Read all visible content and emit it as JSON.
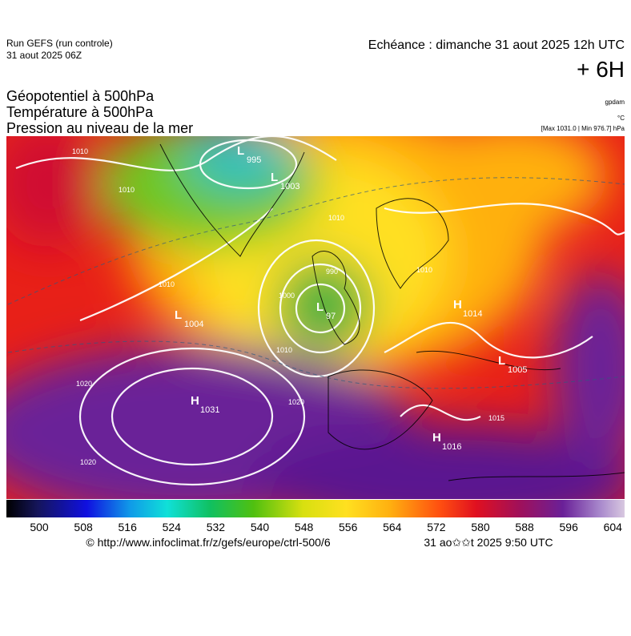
{
  "header": {
    "run": "Run GEFS (run controle)",
    "run_date": "31 aout 2025 06Z",
    "forecast": "Echéance : dimanche 31 aout 2025 12h UTC",
    "step": "+ 6H"
  },
  "legend": {
    "lines": [
      "Géopotentiel à 500hPa",
      "Température à 500hPa",
      "Pression au niveau de la mer"
    ],
    "units": [
      "gpdam",
      "°C",
      "[Max 1031.0 | Min 976.7] hPa"
    ]
  },
  "map": {
    "centers": [
      {
        "kind": "L",
        "value": "995"
      },
      {
        "kind": "L",
        "value": "1003"
      },
      {
        "kind": "L",
        "value": "1004"
      },
      {
        "kind": "L",
        "value": "97"
      },
      {
        "kind": "H",
        "value": "1031"
      },
      {
        "kind": "H",
        "value": "1016"
      },
      {
        "kind": "H",
        "value": "1014"
      },
      {
        "kind": "L",
        "value": "1005"
      }
    ],
    "isobar_labels": [
      "1010",
      "1010",
      "1010",
      "1020",
      "1020",
      "1020",
      "1010",
      "1010",
      "990",
      "1000",
      "1010",
      "1015"
    ]
  },
  "colorbar": {
    "labels": [
      "500",
      "508",
      "516",
      "524",
      "532",
      "540",
      "548",
      "556",
      "564",
      "572",
      "580",
      "588",
      "596",
      "604"
    ]
  },
  "footer": {
    "source": "© http://www.infoclimat.fr/z/gefs/europe/ctrl-500/6",
    "generated": "31 ao✩✩t 2025  9:50 UTC"
  }
}
